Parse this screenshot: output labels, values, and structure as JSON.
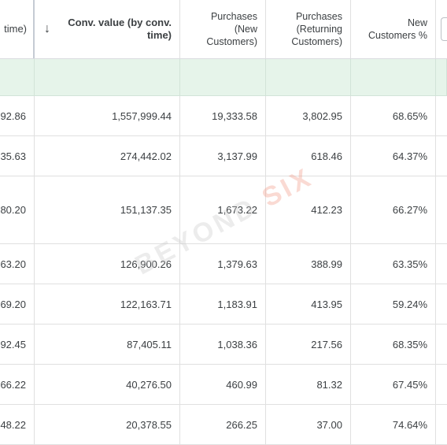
{
  "header": {
    "col0": "time)",
    "col1": "Conv. value (by conv.\ntime)",
    "col2": "Purchases\n(New\nCustomers)",
    "col3": "Purchases\n(Returning\nCustomers)",
    "col4": "New\nCustomers %",
    "sort_icon": "arrow-down-icon"
  },
  "rows": [
    {
      "c0": "92.86",
      "c1": "1,557,999.44",
      "c2": "19,333.58",
      "c3": "3,802.95",
      "c4": "68.65%"
    },
    {
      "c0": "35.63",
      "c1": "274,442.02",
      "c2": "3,137.99",
      "c3": "618.46",
      "c4": "64.37%"
    },
    {
      "c0": "80.20",
      "c1": "151,137.35",
      "c2": "1,673.22",
      "c3": "412.23",
      "c4": "66.27%"
    },
    {
      "c0": "63.20",
      "c1": "126,900.26",
      "c2": "1,379.63",
      "c3": "388.99",
      "c4": "63.35%"
    },
    {
      "c0": "69.20",
      "c1": "122,163.71",
      "c2": "1,183.91",
      "c3": "413.95",
      "c4": "59.24%"
    },
    {
      "c0": "92.45",
      "c1": "87,405.11",
      "c2": "1,038.36",
      "c3": "217.56",
      "c4": "68.35%"
    },
    {
      "c0": "66.22",
      "c1": "40,276.50",
      "c2": "460.99",
      "c3": "81.32",
      "c4": "67.45%"
    },
    {
      "c0": "48.22",
      "c1": "20,378.55",
      "c2": "266.25",
      "c3": "37.00",
      "c4": "74.64%"
    }
  ],
  "watermark": {
    "part1": "BEYOND",
    "part2": "SIX"
  }
}
